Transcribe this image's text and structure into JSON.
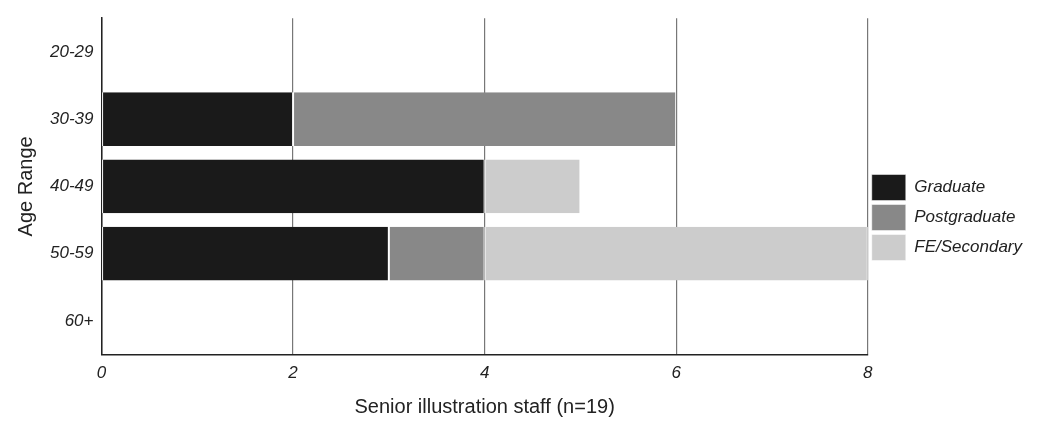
{
  "chart_data": {
    "type": "bar",
    "orientation": "horizontal",
    "stacked": true,
    "xlabel": "Senior illustration staff (n=19)",
    "ylabel": "Age Range",
    "categories": [
      "20-29",
      "30-39",
      "40-49",
      "50-59",
      "60+"
    ],
    "series": [
      {
        "name": "Graduate",
        "color": "#1a1a1a",
        "values": [
          0,
          2,
          4,
          3,
          0
        ]
      },
      {
        "name": "Postgraduate",
        "color": "#888888",
        "values": [
          0,
          4,
          0,
          1,
          0
        ]
      },
      {
        "name": "FE/Secondary",
        "color": "#cccccc",
        "values": [
          0,
          0,
          1,
          4,
          0
        ]
      }
    ],
    "xlim": [
      0,
      8
    ],
    "xticks": [
      0,
      2,
      4,
      6,
      8
    ],
    "grid": "x",
    "legend": "right"
  }
}
